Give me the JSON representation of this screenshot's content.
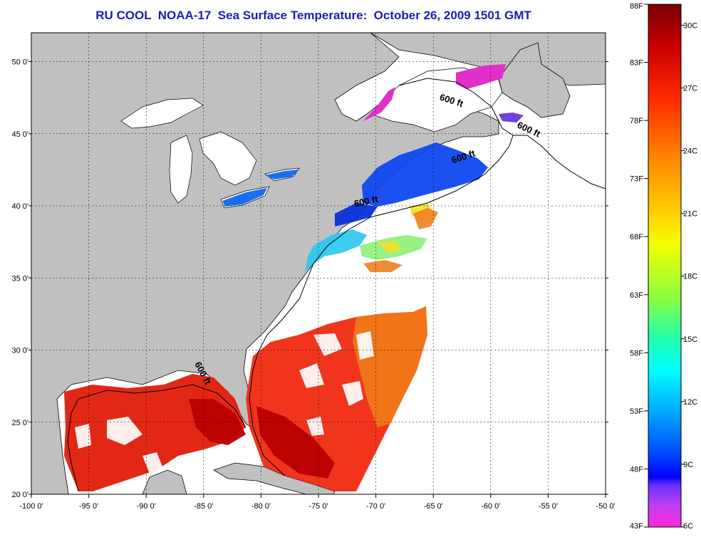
{
  "title": "RU COOL  NOAA-17  Sea Surface Temperature:  October 26, 2009 1501 GMT",
  "map": {
    "lon_range": [
      -100,
      -50
    ],
    "lat_range": [
      20,
      52
    ],
    "x_ticks": [
      {
        "value": -100,
        "label": "-100 0'"
      },
      {
        "value": -95,
        "label": "-95 0'"
      },
      {
        "value": -90,
        "label": "-90 0'"
      },
      {
        "value": -85,
        "label": "-85 0'"
      },
      {
        "value": -80,
        "label": "-80 0'"
      },
      {
        "value": -75,
        "label": "-75 0'"
      },
      {
        "value": -70,
        "label": "-70 0'"
      },
      {
        "value": -65,
        "label": "-65 0'"
      },
      {
        "value": -60,
        "label": "-60 0'"
      },
      {
        "value": -55,
        "label": "-55 0'"
      },
      {
        "value": -50,
        "label": "-50 0'"
      }
    ],
    "y_ticks": [
      {
        "value": 20,
        "label": "20 0'"
      },
      {
        "value": 25,
        "label": "25 0'"
      },
      {
        "value": 30,
        "label": "30 0'"
      },
      {
        "value": 35,
        "label": "35 0'"
      },
      {
        "value": 40,
        "label": "40 0'"
      },
      {
        "value": 45,
        "label": "45 0'"
      },
      {
        "value": 50,
        "label": "50 0'"
      }
    ],
    "contour_labels": [
      {
        "text": "600 ft",
        "lon": -63.5,
        "lat": 47.1,
        "rotate": 18
      },
      {
        "text": "600 ft",
        "lon": -56.8,
        "lat": 45.1,
        "rotate": 25
      },
      {
        "text": "600 ft",
        "lon": -62.3,
        "lat": 43.2,
        "rotate": -18
      },
      {
        "text": "600 ft",
        "lon": -70.8,
        "lat": 40.1,
        "rotate": -12
      },
      {
        "text": "600 ft",
        "lon": -85.3,
        "lat": 28.3,
        "rotate": 62
      }
    ],
    "colors": {
      "land": "#c0c0c0",
      "water": "#ffffff",
      "title": "#1c1cb4"
    }
  },
  "colorbar": {
    "fahrenheit_labels": [
      "88F",
      "83F",
      "78F",
      "73F",
      "68F",
      "63F",
      "58F",
      "53F",
      "48F",
      "43F"
    ],
    "celsius_labels": [
      "30C",
      "27C",
      "24C",
      "21C",
      "18C",
      "15C",
      "12C",
      "9C",
      "6C"
    ],
    "range_f": [
      43,
      88
    ],
    "range_c": [
      6,
      31
    ],
    "celsius_tick_values": [
      30,
      27,
      24,
      21,
      18,
      15,
      12,
      9,
      6
    ]
  }
}
